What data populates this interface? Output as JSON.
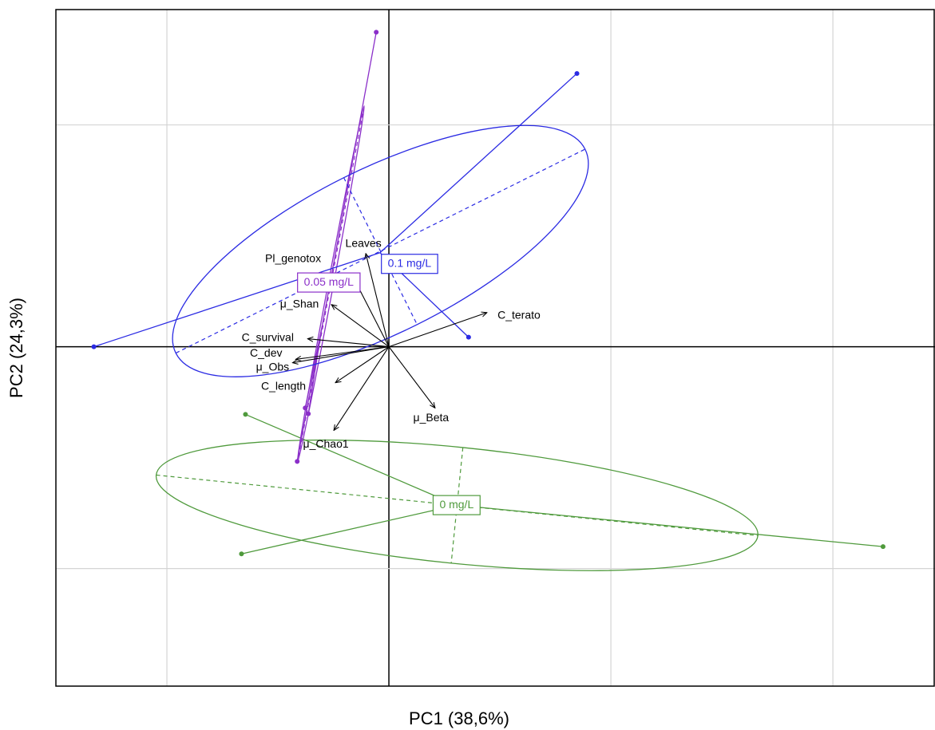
{
  "chart_data": {
    "type": "biplot",
    "xlabel": "PC1 (38,6%)",
    "ylabel": "PC2 (24,3%)",
    "xlim": [
      -1.5,
      2.46
    ],
    "ylim": [
      -1.53,
      1.52
    ],
    "xticks": [
      -1,
      0,
      1,
      2
    ],
    "yticks": [
      -1,
      0,
      1
    ],
    "grid": true,
    "series": [
      {
        "name": "0 mg/L",
        "color": "#4f9a3c",
        "x": [
          -0.646,
          -0.664,
          2.226
        ],
        "values": [
          -0.305,
          -0.934,
          -0.901
        ],
        "center": [
          0.305,
          -0.714
        ],
        "ellipse": {
          "cx": 0.307,
          "cy": -0.715,
          "a": 1.362,
          "b": 0.262,
          "angle": -5.75
        }
      },
      {
        "name": "0.05 mg/L",
        "color": "#8b2fc9",
        "x": [
          -0.057,
          -0.377,
          -0.363,
          -0.413
        ],
        "values": [
          1.418,
          -0.276,
          -0.302,
          -0.517
        ],
        "center": [
          -0.303,
          0.081
        ],
        "ellipse": {
          "cx": -0.262,
          "cy": 0.28,
          "a": 0.82,
          "b": 0.012,
          "angle": 79.4
        }
      },
      {
        "name": "0.1 mg/L",
        "color": "#2b2be3",
        "x": [
          -1.329,
          0.847,
          0.359
        ],
        "values": [
          0,
          1.232,
          0.043
        ],
        "center": [
          -0.04,
          0.424
        ],
        "ellipse": {
          "cx": -0.038,
          "cy": 0.431,
          "a": 1.03,
          "b": 0.37,
          "angle": 26.5
        }
      }
    ],
    "variables": {
      "names": [
        "Leaves",
        "Pl_genotox",
        "μ_Shan",
        "C_survival",
        "C_dev",
        "μ_Obs",
        "C_length",
        "μ_Chao1",
        "μ_Beta",
        "C_terato"
      ],
      "x": [
        -0.104,
        -0.169,
        -0.259,
        -0.366,
        -0.42,
        -0.434,
        -0.241,
        -0.248,
        0.208,
        0.442
      ],
      "values": [
        0.42,
        0.33,
        0.19,
        0.036,
        -0.057,
        -0.072,
        -0.162,
        -0.377,
        -0.276,
        0.154
      ]
    }
  }
}
